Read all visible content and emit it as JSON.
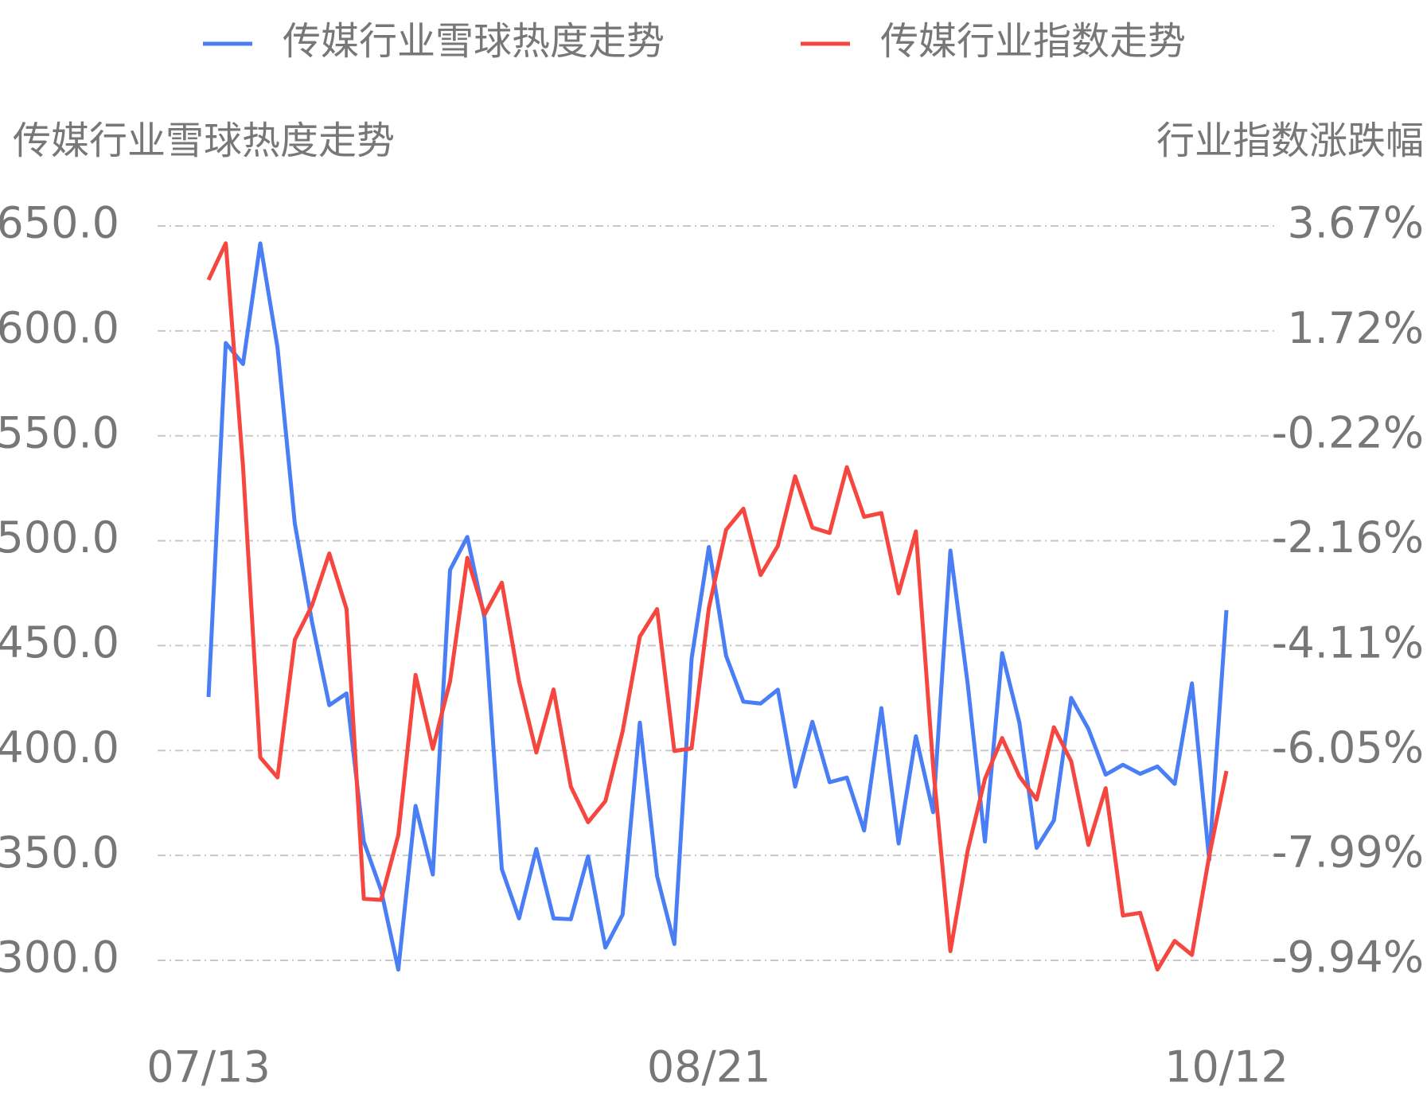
{
  "chart_data": {
    "type": "line",
    "legend": "top",
    "grid": true,
    "y_axis_title": "传媒行业雪球热度走势",
    "y2_axis_title": "行业指数涨跌幅",
    "categories": [
      "07/13",
      null,
      null,
      null,
      null,
      null,
      null,
      null,
      null,
      null,
      null,
      null,
      null,
      null,
      null,
      null,
      null,
      null,
      null,
      null,
      null,
      null,
      null,
      null,
      null,
      null,
      null,
      null,
      null,
      "08/21",
      null,
      null,
      null,
      null,
      null,
      null,
      null,
      null,
      null,
      null,
      null,
      null,
      null,
      null,
      null,
      null,
      null,
      null,
      null,
      null,
      null,
      null,
      null,
      null,
      null,
      null,
      null,
      null,
      null,
      "10/12"
    ],
    "ylim": [
      300,
      650
    ],
    "yticks": [
      {
        "value": 300,
        "label": "300.0"
      },
      {
        "value": 350,
        "label": "350.0"
      },
      {
        "value": 400,
        "label": "400.0"
      },
      {
        "value": 450,
        "label": "450.0"
      },
      {
        "value": 500,
        "label": "500.0"
      },
      {
        "value": 550,
        "label": "550.0"
      },
      {
        "value": 600,
        "label": "600.0"
      },
      {
        "value": 650,
        "label": "650.0"
      }
    ],
    "y2lim": [
      -9.94,
      3.67
    ],
    "y2ticks": [
      {
        "value": -9.94,
        "label": "-9.94%"
      },
      {
        "value": -7.99,
        "label": "-7.99%"
      },
      {
        "value": -6.05,
        "label": "-6.05%"
      },
      {
        "value": -4.11,
        "label": "-4.11%"
      },
      {
        "value": -2.16,
        "label": "-2.16%"
      },
      {
        "value": -0.22,
        "label": "-0.22%"
      },
      {
        "value": 1.72,
        "label": "1.72%"
      },
      {
        "value": 3.67,
        "label": "3.67%"
      }
    ],
    "series": [
      {
        "name": "传媒行业雪球热度走势",
        "color": "#4a7ef5",
        "values": [
          425.5,
          594.2,
          584.2,
          641.7,
          592.0,
          508.3,
          461.2,
          421.6,
          427.2,
          356.6,
          333.5,
          295.6,
          373.6,
          340.9,
          486.1,
          501.8,
          463.0,
          343.5,
          320.0,
          353.1,
          320.0,
          319.6,
          349.6,
          306.1,
          321.8,
          413.3,
          340.1,
          307.8,
          443.8,
          497.0,
          445.1,
          423.3,
          422.4,
          429.0,
          382.8,
          413.7,
          384.9,
          387.1,
          361.9,
          420.2,
          355.7,
          406.8,
          370.6,
          495.3,
          432.0,
          356.6,
          446.4,
          413.3,
          353.6,
          366.7,
          425.1,
          410.3,
          388.5,
          393.2,
          388.9,
          392.4,
          384.1,
          432.0,
          347.9,
          466.9
        ]
      },
      {
        "name": "传媒行业指数走势",
        "color": "#f5473f",
        "axis": "y2",
        "values": [
          2.67,
          3.35,
          -0.79,
          -6.18,
          -6.55,
          -4.0,
          -3.36,
          -2.4,
          -3.43,
          -8.8,
          -8.82,
          -7.62,
          -4.65,
          -6.02,
          -4.77,
          -2.48,
          -3.53,
          -2.94,
          -4.77,
          -6.09,
          -4.92,
          -6.72,
          -7.38,
          -6.99,
          -5.7,
          -3.94,
          -3.43,
          -6.06,
          -6.01,
          -3.41,
          -1.96,
          -1.57,
          -2.8,
          -2.26,
          -0.97,
          -1.92,
          -2.02,
          -0.8,
          -1.72,
          -1.65,
          -3.14,
          -1.99,
          -6.35,
          -9.77,
          -7.91,
          -6.58,
          -5.82,
          -6.53,
          -6.96,
          -5.62,
          -6.25,
          -7.8,
          -6.75,
          -9.11,
          -9.06,
          -10.11,
          -9.58,
          -9.84,
          -8.01,
          -6.43
        ]
      }
    ]
  }
}
